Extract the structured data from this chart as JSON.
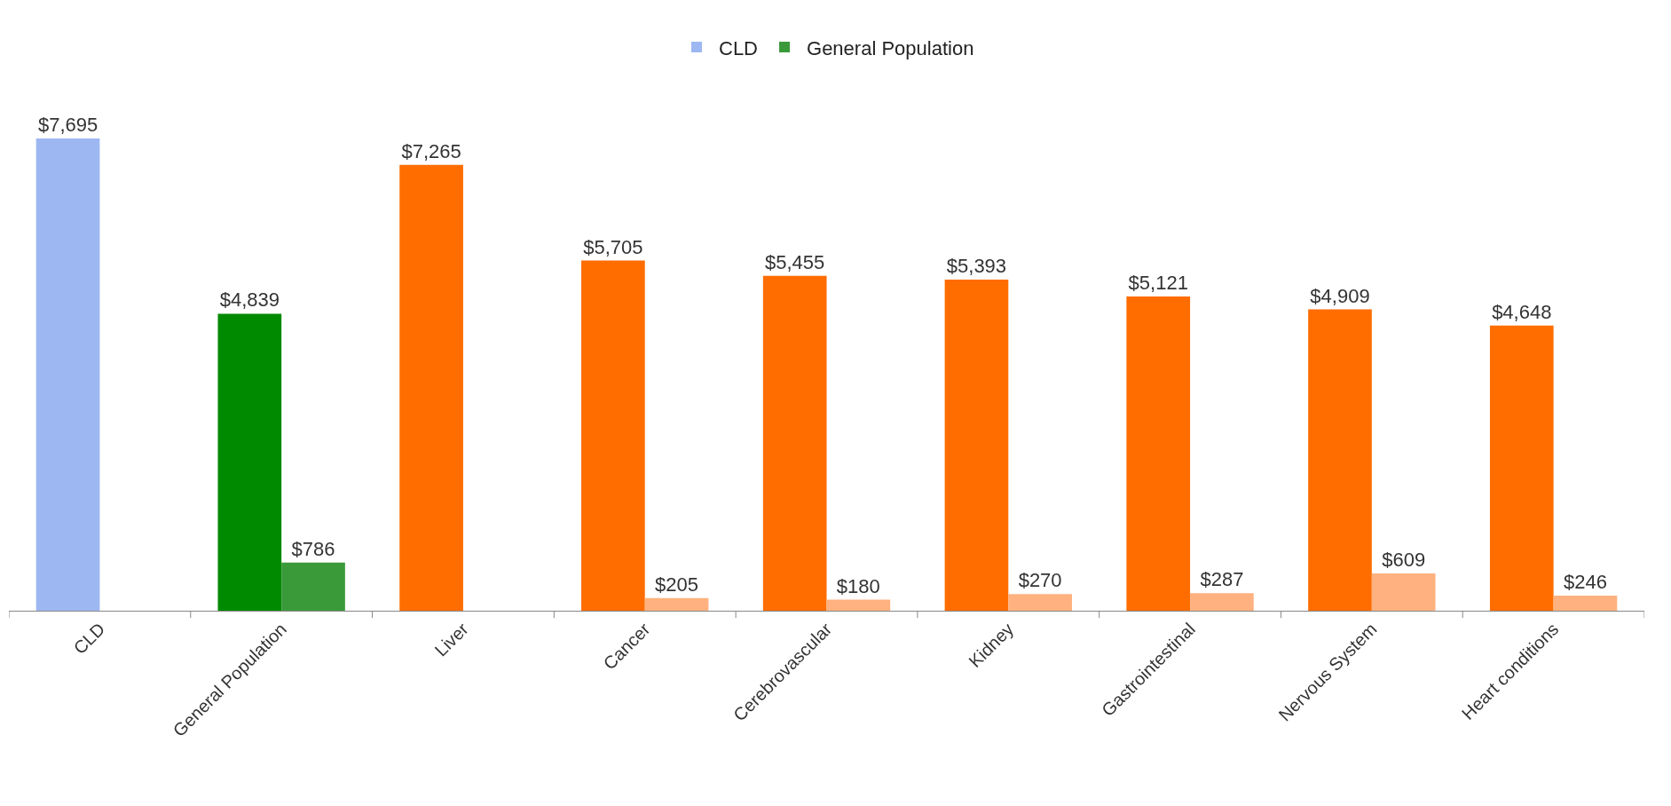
{
  "chart_data": {
    "type": "bar",
    "categories": [
      "CLD",
      "General Population",
      "Liver",
      "Cancer",
      "Cerebrovascular",
      "Kidney",
      "Gastrointestinal",
      "Nervous System",
      "Heart conditions"
    ],
    "series": [
      {
        "name": "CLD",
        "color": "#9db7f2",
        "colors": [
          "#9db7f2",
          "#008a00",
          "#ff6d00",
          "#ff6d00",
          "#ff6d00",
          "#ff6d00",
          "#ff6d00",
          "#ff6d00",
          "#ff6d00"
        ],
        "values": [
          7695,
          4839,
          7265,
          5705,
          5455,
          5393,
          5121,
          4909,
          4648
        ],
        "value_labels": [
          "$7,695",
          "$4,839",
          "$7,265",
          "$5,705",
          "$5,455",
          "$5,393",
          "$5,121",
          "$4,909",
          "$4,648"
        ]
      },
      {
        "name": "General Population",
        "color": "#3a9a3a",
        "colors": [
          null,
          "#3a9a3a",
          "#ffb27f",
          "#ffb27f",
          "#ffb27f",
          "#ffb27f",
          "#ffb27f",
          "#ffb27f",
          "#ffb27f"
        ],
        "values": [
          null,
          786,
          null,
          205,
          180,
          270,
          287,
          609,
          246
        ],
        "value_labels": [
          null,
          "$786",
          null,
          "$205",
          "$180",
          "$270",
          "$287",
          "$609",
          "$246"
        ]
      }
    ],
    "legend": "top"
  }
}
